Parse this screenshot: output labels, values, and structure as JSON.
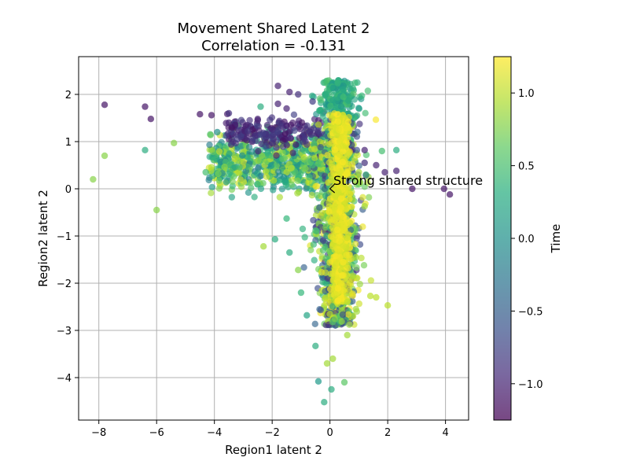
{
  "chart_data": {
    "type": "scatter",
    "title": "Movement Shared Latent 2",
    "subtitle": "Correlation = -0.131",
    "xlabel": "Region1 latent 2",
    "ylabel": "Region2 latent 2",
    "xlim": [
      -8.7,
      4.8
    ],
    "ylim": [
      -4.9,
      2.8
    ],
    "xticks": [
      -8,
      -6,
      -4,
      -2,
      0,
      2,
      4
    ],
    "yticks": [
      -4,
      -3,
      -2,
      -1,
      0,
      1,
      2
    ],
    "grid": true,
    "colorbar": {
      "label": "Time",
      "range": [
        -1.25,
        1.25
      ],
      "ticks": [
        -1.0,
        -0.5,
        0.0,
        0.5,
        1.0
      ],
      "colormap": "viridis"
    },
    "annotation": {
      "text": "Strong shared structure",
      "x": 0.0,
      "y": 0.0
    },
    "points": [
      [
        -7.8,
        1.78,
        -1.1
      ],
      [
        -6.4,
        1.74,
        -1.1
      ],
      [
        -6.2,
        1.48,
        -1.1
      ],
      [
        -4.5,
        1.58,
        -1.1
      ],
      [
        -4.1,
        1.56,
        -1.1
      ],
      [
        -6.4,
        0.82,
        0.3
      ],
      [
        -7.8,
        0.7,
        0.8
      ],
      [
        -8.2,
        0.2,
        0.8
      ],
      [
        -6.0,
        -0.45,
        0.8
      ],
      [
        -5.4,
        0.97,
        0.8
      ],
      [
        2.85,
        0.0,
        -1.1
      ],
      [
        3.95,
        0.0,
        -1.1
      ],
      [
        4.15,
        -0.12,
        -1.1
      ],
      [
        2.3,
        0.82,
        0.3
      ],
      [
        1.8,
        0.8,
        0.5
      ],
      [
        2.3,
        0.38,
        -1.0
      ],
      [
        1.9,
        0.35,
        -1.0
      ],
      [
        1.6,
        0.5,
        -1.0
      ],
      [
        1.2,
        0.55,
        -0.9
      ],
      [
        2.0,
        -2.47,
        1.0
      ],
      [
        1.6,
        -2.3,
        1.0
      ],
      [
        1.4,
        -2.27,
        1.0
      ],
      [
        0.8,
        -2.7,
        1.0
      ],
      [
        0.5,
        -4.1,
        0.6
      ],
      [
        0.05,
        -4.25,
        0.3
      ],
      [
        -0.2,
        -4.52,
        0.3
      ],
      [
        -0.4,
        -4.08,
        0.1
      ],
      [
        -0.5,
        -3.33,
        0.3
      ],
      [
        -0.8,
        -2.68,
        0.2
      ],
      [
        -1.0,
        -2.2,
        0.4
      ],
      [
        -2.3,
        -1.22,
        0.9
      ],
      [
        -1.9,
        -1.07,
        0.3
      ],
      [
        -1.5,
        -0.63,
        0.4
      ],
      [
        -1.4,
        -1.35,
        0.3
      ],
      [
        -1.1,
        -1.72,
        0.8
      ],
      [
        -1.8,
        2.18,
        -1.0
      ],
      [
        -1.4,
        2.05,
        -1.0
      ],
      [
        -1.1,
        2.0,
        -0.9
      ],
      [
        -0.6,
        1.85,
        -0.8
      ],
      [
        -2.5,
        1.48,
        -1.0
      ],
      [
        -3.5,
        1.4,
        -1.0
      ],
      [
        -3.9,
        1.2,
        0.0
      ],
      [
        -3.2,
        1.05,
        -0.8
      ],
      [
        -2.5,
        1.45,
        -1.0
      ],
      [
        -2.0,
        1.25,
        -0.9
      ],
      [
        -1.8,
        1.8,
        -1.0
      ],
      [
        -1.5,
        1.7,
        -1.0
      ],
      [
        -2.4,
        1.74,
        0.3
      ],
      [
        -3.5,
        1.6,
        -0.9
      ],
      [
        0.6,
        -2.4,
        1.0
      ],
      [
        1.0,
        0.35,
        0.9
      ],
      [
        1.2,
        -0.37,
        0.9
      ],
      [
        0.9,
        -1.45,
        0.9
      ],
      [
        0.8,
        -1.85,
        0.9
      ],
      [
        0.6,
        -3.1,
        0.9
      ],
      [
        0.1,
        -3.6,
        0.9
      ],
      [
        -0.1,
        -3.7,
        0.9
      ],
      [
        0.9,
        -2.55,
        0.9
      ],
      [
        1.2,
        0.82,
        -1.0
      ],
      [
        -4.3,
        0.35,
        0.5
      ]
    ]
  }
}
